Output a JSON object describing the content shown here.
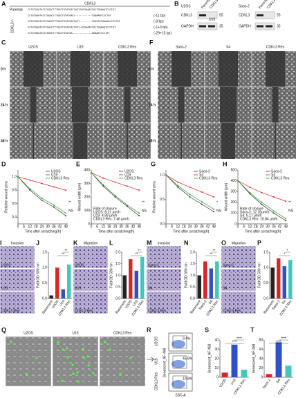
{
  "panel_labels": [
    "A",
    "B",
    "C",
    "D",
    "E",
    "F",
    "G",
    "H",
    "I",
    "J",
    "K",
    "L",
    "M",
    "N",
    "O",
    "P",
    "Q",
    "R",
    "S",
    "T"
  ],
  "panel_a": {
    "gene": "CDKL3",
    "group": "CDKL3-/-",
    "rows": [
      {
        "name": "Parental",
        "seq": "CCTGTGGATATCTGGGCTTTGGCTGTATGATCATTGATGAAACCACTGGAAATCCCTAT",
        "note": null
      },
      {
        "name": null,
        "seq": "CCTGTGGATATCTGGGCTTTGGCTGTATGATC-----------TGGAAATCCCTAT",
        "note": "(-11 bp)"
      },
      {
        "name": null,
        "seq": "CCTGTGGATATCTGGGCTTTGGCTGTATGATCATT--------TGGCACTGGAAATCCCTAT",
        "note": "(-8 bp)"
      },
      {
        "name": null,
        "seq": "CCTGTGGATATCTGGGCTTTGGCTGTATGATCATT-ATGAAACCACTGGAAATCCCTAT",
        "note": "(-1+3 bp)"
      },
      {
        "name": null,
        "seq": "CCTGTGGATATCTGGGCTTTGGCTGTATGA-------------GGAAATCCCTAT",
        "note": "(-29+15 bp)"
      }
    ]
  },
  "panel_b": {
    "cell_lines": [
      "U2OS",
      "Saos-2"
    ],
    "lanes": [
      "Parental",
      "CDKL3-/-"
    ],
    "proteins": [
      "CDKL3",
      "GAPDH"
    ],
    "markers": [
      55,
      35
    ],
    "clone": "U19"
  },
  "panel_c": {
    "columns": [
      "U2OS",
      "U19",
      "CDKL3 Res"
    ],
    "rows": [
      "0 h",
      "24 h",
      "48 h"
    ]
  },
  "panel_f": {
    "columns": [
      "Saos-2",
      "S4",
      "CDKL3 Res"
    ],
    "rows": [
      "0 h",
      "24 h",
      "48 h"
    ]
  },
  "panel_i": {
    "title": "Invasion",
    "labels": [
      "U2OS",
      "U19",
      "CDKL3 Res"
    ]
  },
  "panel_k": {
    "title": "Migration",
    "labels": [
      "U2OS",
      "U19",
      "CDKL3 Res"
    ]
  },
  "panel_m": {
    "title": "Invasion",
    "labels": [
      "Saos-2",
      "S4",
      "CDKL3 Res"
    ]
  },
  "panel_o": {
    "title": "Migration",
    "labels": [
      "Saos-2",
      "S4",
      "CDKL3 Res"
    ]
  },
  "panel_q": {
    "labels": [
      "U2OS",
      "U19",
      "CDKL3 Res"
    ]
  },
  "panel_r": {
    "row_labels": [
      "U2OS",
      "U19",
      "CDKL3 Res"
    ],
    "y_label": "Senescent_AF-488",
    "x_label": "SSC-A",
    "gates": [
      "9.4%",
      "45.9%",
      "10.8%"
    ]
  },
  "chart_data": [
    {
      "type": "line",
      "y_label": "Relative wound area",
      "x_label": "Time after scratching(h)",
      "x": [
        0,
        12,
        24,
        36,
        48
      ],
      "xlim": [
        0,
        50
      ],
      "xticks": [
        0,
        6,
        12,
        18,
        24,
        30,
        36,
        42,
        48
      ],
      "ylim": [
        0.3,
        1.1
      ],
      "yticks": [
        0.4,
        0.6,
        0.8,
        {
          "value": 1,
          "label": "1.0"
        }
      ],
      "legend": "upper right",
      "series": [
        {
          "name": "U2OS",
          "color": "#333333",
          "values": [
            1,
            0.8,
            0.65,
            0.55,
            0.42
          ]
        },
        {
          "name": "U19",
          "color": "#d62728",
          "values": [
            1,
            0.95,
            0.9,
            0.85,
            0.8
          ]
        },
        {
          "name": "CDKL3 Res",
          "color": "#2ca02c",
          "values": [
            1,
            0.82,
            0.68,
            0.58,
            0.46
          ]
        }
      ],
      "annotations": [
        "**",
        "NS"
      ],
      "notes": []
    },
    {
      "type": "line",
      "y_label": "Wound width (μm)",
      "x_label": "Time after scratching(h)",
      "x": [
        0,
        12,
        24,
        36,
        48
      ],
      "xlim": [
        0,
        50
      ],
      "xticks": [
        0,
        6,
        12,
        18,
        24,
        30,
        36,
        42,
        48
      ],
      "ylim": [
        0,
        400
      ],
      "yticks": [
        0,
        100,
        200,
        300,
        400
      ],
      "legend": "upper right",
      "series": [
        {
          "name": "U2OS",
          "color": "#333333",
          "values": [
            380,
            280,
            200,
            130,
            60
          ]
        },
        {
          "name": "U19",
          "color": "#d62728",
          "values": [
            380,
            340,
            310,
            280,
            250
          ]
        },
        {
          "name": "CDKL3 Res",
          "color": "#2ca02c",
          "values": [
            380,
            290,
            210,
            140,
            80
          ]
        }
      ],
      "annotations": [
        "**",
        "NS"
      ],
      "notes": [
        "Rate of closure",
        "U2OS: 8.21 μm/h",
        "U19: 4.99 μm/h",
        "CDKL3 Res: 7.46 μm/h"
      ]
    },
    {
      "type": "line",
      "y_label": "Relative wound area",
      "x_label": "Time after scratching(h)",
      "x": [
        0,
        12,
        24,
        36,
        48
      ],
      "xlim": [
        0,
        50
      ],
      "xticks": [
        0,
        6,
        12,
        18,
        24,
        30,
        36,
        42,
        48
      ],
      "ylim": [
        0,
        1.1
      ],
      "yticks": [
        {
          "value": 0,
          "label": "0.0"
        },
        0.5,
        {
          "value": 1,
          "label": "1.0"
        }
      ],
      "legend": "upper right",
      "series": [
        {
          "name": "Saos-2",
          "color": "#333333",
          "values": [
            1,
            0.75,
            0.55,
            0.4,
            0.25
          ]
        },
        {
          "name": "S4",
          "color": "#d62728",
          "values": [
            1,
            0.85,
            0.75,
            0.65,
            0.55
          ]
        },
        {
          "name": "CDKL3 Res",
          "color": "#2ca02c",
          "values": [
            1,
            0.78,
            0.6,
            0.45,
            0.3
          ]
        }
      ],
      "annotations": [
        "*",
        "NS"
      ],
      "notes": []
    },
    {
      "type": "line",
      "y_label": "Wound width (μm)",
      "x_label": "Time after scratching(h)",
      "x": [
        0,
        12,
        24,
        36,
        48
      ],
      "xlim": [
        0,
        50
      ],
      "xticks": [
        0,
        6,
        12,
        18,
        24,
        30,
        36,
        42,
        48
      ],
      "ylim": [
        0,
        500
      ],
      "yticks": [
        0,
        100,
        200,
        300,
        400,
        500
      ],
      "legend": "upper right",
      "series": [
        {
          "name": "Saos-2",
          "color": "#333333",
          "values": [
            400,
            280,
            180,
            100,
            30
          ]
        },
        {
          "name": "S4",
          "color": "#d62728",
          "values": [
            400,
            340,
            290,
            250,
            210
          ]
        },
        {
          "name": "CDKL3 Res",
          "color": "#2ca02c",
          "values": [
            400,
            290,
            200,
            120,
            50
          ]
        }
      ],
      "annotations": [
        "**",
        "NS"
      ],
      "notes": [
        "Rate of closure",
        "Saos-2: 12.35μm/h",
        "S4: 6.17 μm/h",
        "CDKL3 Res: 10.84 μm/h"
      ]
    },
    {
      "type": "bar",
      "y_label": "Fold OD 590 nm",
      "categories": [
        "Basement",
        "U2OS",
        "U19",
        "CDKL3 Res"
      ],
      "values": [
        0.1,
        1.0,
        0.3,
        1.1
      ],
      "colors": [
        "#222222",
        "#d62728",
        "#3050c8",
        "#40c8b8"
      ],
      "ylim": [
        0,
        1.5
      ],
      "yticks": [
        {
          "value": 0,
          "label": "0.0"
        },
        0.5,
        {
          "value": 1,
          "label": "1.0"
        },
        1.5
      ],
      "annotations": [
        "**",
        "**"
      ]
    },
    {
      "type": "bar",
      "y_label": "Fold OD 590 nm",
      "categories": [
        "Basement",
        "U2OS",
        "U19",
        "CDKL3 Res"
      ],
      "values": [
        1.0,
        1.7,
        1.2,
        1.8
      ],
      "colors": [
        "#222222",
        "#d62728",
        "#3050c8",
        "#40c8b8"
      ],
      "ylim": [
        0,
        2
      ],
      "yticks": [
        {
          "value": 0,
          "label": "0.0"
        },
        0.5,
        {
          "value": 1,
          "label": "1.0"
        },
        1.5,
        {
          "value": 2,
          "label": "2.0"
        }
      ],
      "annotations": [
        "**",
        "**"
      ]
    },
    {
      "type": "bar",
      "y_label": "Fold OD 590 nm",
      "categories": [
        "Basement",
        "Saos-2",
        "S4",
        "CDKL3 Res"
      ],
      "values": [
        1.0,
        1.6,
        1.3,
        1.6
      ],
      "colors": [
        "#222222",
        "#d62728",
        "#3050c8",
        "#40c8b8"
      ],
      "ylim": [
        0,
        2
      ],
      "yticks": [
        {
          "value": 0,
          "label": "0.0"
        },
        0.5,
        {
          "value": 1,
          "label": "1.0"
        },
        1.5,
        {
          "value": 2,
          "label": "2.0"
        }
      ],
      "annotations": [
        "**",
        "**"
      ]
    },
    {
      "type": "bar",
      "y_label": "Fold OD 590 nm",
      "categories": [
        "Basement",
        "Saos-2",
        "S4",
        "CDKL3 Res"
      ],
      "values": [
        1.0,
        1.3,
        1.05,
        1.25
      ],
      "colors": [
        "#222222",
        "#d62728",
        "#3050c8",
        "#40c8b8"
      ],
      "ylim": [
        0,
        1.5
      ],
      "yticks": [
        {
          "value": 0,
          "label": "0.0"
        },
        0.5,
        {
          "value": 1,
          "label": "1.0"
        },
        1.5
      ],
      "annotations": [
        "*",
        "*"
      ]
    },
    {
      "type": "bar",
      "y_label": "Senescent_AF-488",
      "categories": [
        "U2OS",
        "U19",
        "CDKL3 Res"
      ],
      "values": [
        5,
        35,
        8
      ],
      "colors": [
        "#d62728",
        "#3050c8",
        "#40c8b8"
      ],
      "ylim": [
        0,
        40
      ],
      "yticks": [
        0,
        10,
        20,
        30,
        40
      ],
      "annotations": [
        "****",
        "****"
      ]
    },
    {
      "type": "bar",
      "y_label": "Senescent_AF-488",
      "categories": [
        "Saos-2",
        "S4",
        "CDKL3 Res"
      ],
      "values": [
        7,
        75,
        25
      ],
      "colors": [
        "#d62728",
        "#3050c8",
        "#40c8b8"
      ],
      "ylim": [
        0,
        80
      ],
      "yticks": [
        0,
        20,
        40,
        60,
        80
      ],
      "annotations": [
        "****",
        "****"
      ]
    }
  ]
}
